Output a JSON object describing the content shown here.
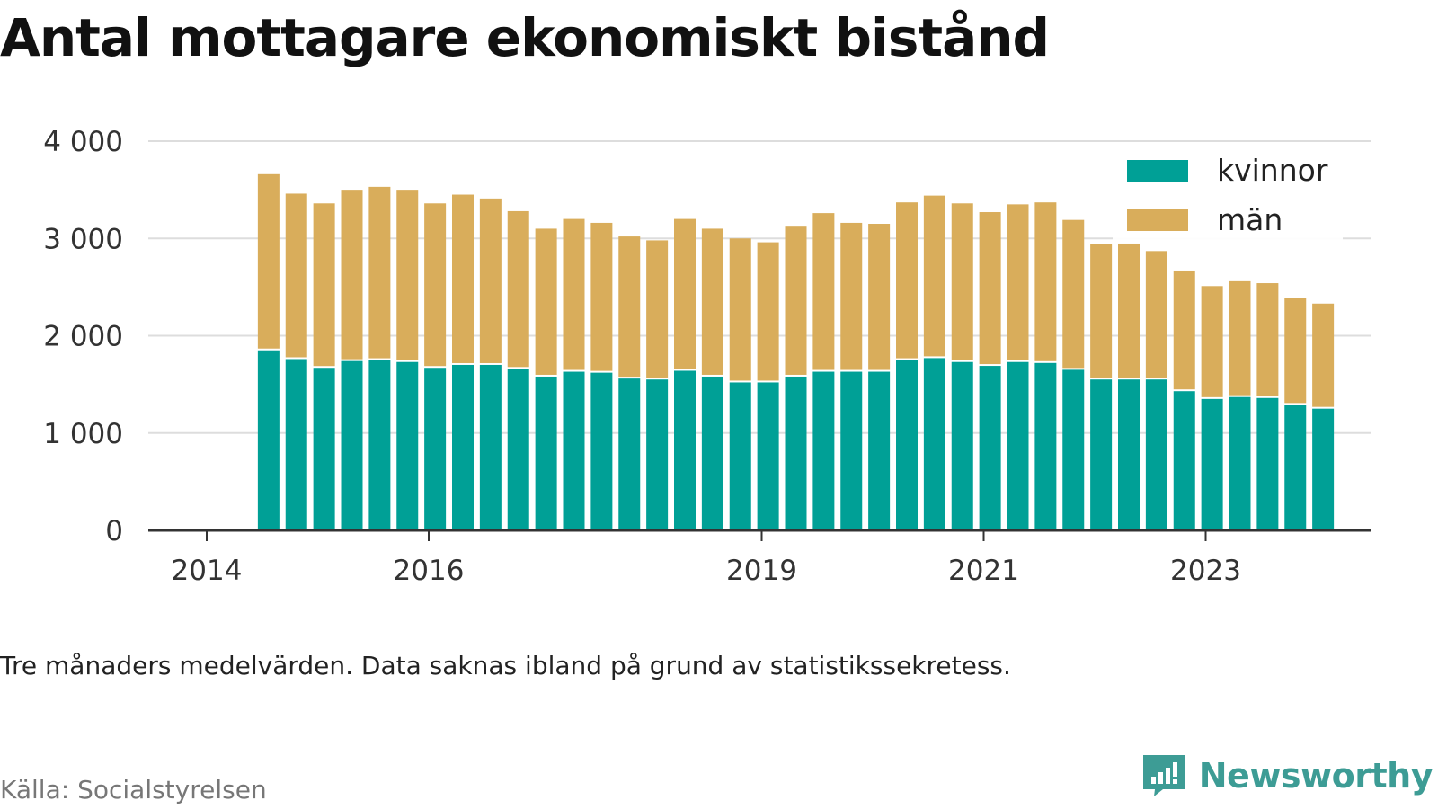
{
  "title": "Antal mottagare ekonomiskt bistånd",
  "note": "Tre månaders medelvärden. Data saknas ibland på grund av statistikssekretess.",
  "source": "Källa: Socialstyrelsen",
  "brand": "Newsworthy",
  "colors": {
    "kvinnor": "#00a096",
    "man": "#d9ad5b",
    "brand": "#3d9c95",
    "grid": "#dddddd",
    "axis": "#333333"
  },
  "chart_data": {
    "type": "bar",
    "stacked": true,
    "x_start": "2014-04",
    "x_step_months": 3,
    "periods": [
      "2014-04",
      "2014-07",
      "2014-10",
      "2015-01",
      "2015-04",
      "2015-07",
      "2015-10",
      "2016-01",
      "2016-04",
      "2016-07",
      "2016-10",
      "2017-01",
      "2017-04",
      "2017-07",
      "2017-10",
      "2018-01",
      "2018-04",
      "2018-07",
      "2018-10",
      "2019-01",
      "2019-04",
      "2019-07",
      "2019-10",
      "2020-01",
      "2020-04",
      "2020-07",
      "2020-10",
      "2021-01",
      "2021-04",
      "2021-07",
      "2021-10",
      "2022-01",
      "2022-04",
      "2022-07",
      "2022-10",
      "2023-01",
      "2023-04",
      "2023-07",
      "2023-10"
    ],
    "x_ticks": [
      {
        "label": "2014",
        "period": "2014-01"
      },
      {
        "label": "2016",
        "period": "2016-01"
      },
      {
        "label": "2019",
        "period": "2019-01"
      },
      {
        "label": "2021",
        "period": "2021-01"
      },
      {
        "label": "2023",
        "period": "2023-01"
      }
    ],
    "y_ticks": [
      {
        "value": 0,
        "label": "0"
      },
      {
        "value": 1000,
        "label": "1 000"
      },
      {
        "value": 2000,
        "label": "2 000"
      },
      {
        "value": 3000,
        "label": "3 000"
      },
      {
        "value": 4000,
        "label": "4 000"
      }
    ],
    "ylim": [
      0,
      4000
    ],
    "grid": true,
    "legend_position": "top-right",
    "series": [
      {
        "name": "kvinnor",
        "color": "#00a096",
        "values": [
          1850,
          1760,
          1670,
          1740,
          1750,
          1730,
          1670,
          1700,
          1700,
          1660,
          1580,
          1630,
          1620,
          1560,
          1550,
          1640,
          1580,
          1520,
          1520,
          1580,
          1630,
          1630,
          1630,
          1750,
          1770,
          1730,
          1690,
          1730,
          1720,
          1650,
          1550,
          1550,
          1550,
          1430,
          1350,
          1370,
          1360,
          1290,
          1250
        ]
      },
      {
        "name": "män",
        "color": "#d9ad5b",
        "values": [
          1810,
          1700,
          1690,
          1760,
          1780,
          1770,
          1690,
          1750,
          1710,
          1620,
          1520,
          1570,
          1540,
          1460,
          1430,
          1560,
          1520,
          1480,
          1440,
          1550,
          1630,
          1530,
          1520,
          1620,
          1670,
          1630,
          1580,
          1620,
          1650,
          1540,
          1390,
          1400,
          1320,
          1240,
          1160,
          1190,
          1180,
          1100,
          1080
        ]
      }
    ]
  }
}
